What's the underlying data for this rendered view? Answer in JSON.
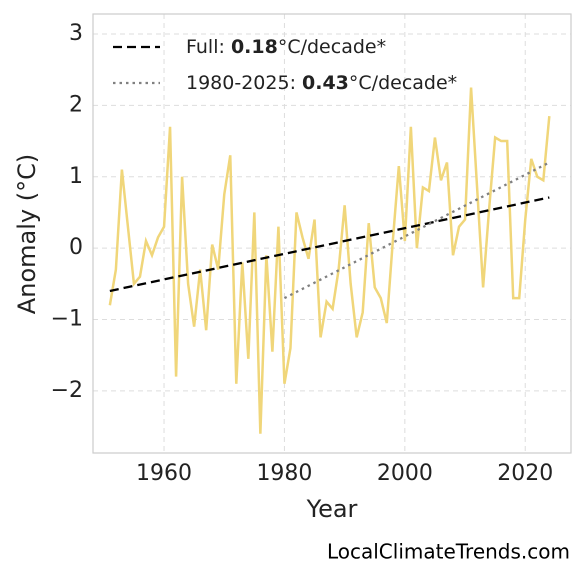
{
  "chart_data": {
    "type": "line",
    "xlabel": "Year",
    "ylabel": "Anomaly (°C)",
    "watermark": "LocalClimateTrends.com",
    "xlim": [
      1948.2,
      2027.6
    ],
    "ylim": [
      -2.87,
      3.28
    ],
    "xticks": [
      1960,
      1980,
      2000,
      2020
    ],
    "yticks": [
      {
        "value": -2,
        "label": "−2"
      },
      {
        "value": -1,
        "label": "−1"
      },
      0,
      1,
      2,
      3
    ],
    "grid": true,
    "legend": "upper left",
    "series": [
      {
        "color": "#f0d67a",
        "style": "solid",
        "x": [
          1951,
          1952,
          1953,
          1954,
          1955,
          1956,
          1957,
          1958,
          1959,
          1960,
          1961,
          1962,
          1963,
          1964,
          1965,
          1966,
          1967,
          1968,
          1969,
          1970,
          1971,
          1972,
          1973,
          1974,
          1975,
          1976,
          1977,
          1978,
          1979,
          1980,
          1981,
          1982,
          1983,
          1984,
          1985,
          1986,
          1987,
          1988,
          1989,
          1990,
          1991,
          1992,
          1993,
          1994,
          1995,
          1996,
          1997,
          1998,
          1999,
          2000,
          2001,
          2002,
          2003,
          2004,
          2005,
          2006,
          2007,
          2008,
          2009,
          2010,
          2011,
          2012,
          2013,
          2014,
          2015,
          2016,
          2017,
          2018,
          2019,
          2020,
          2021,
          2022,
          2023,
          2024
        ],
        "values": [
          -0.8,
          -0.3,
          1.1,
          0.3,
          -0.5,
          -0.4,
          0.1,
          -0.1,
          0.15,
          0.3,
          1.7,
          -1.8,
          1.0,
          -0.5,
          -1.1,
          -0.3,
          -1.15,
          0.05,
          -0.3,
          0.75,
          1.3,
          -1.9,
          -0.2,
          -1.55,
          0.5,
          -2.6,
          -0.1,
          -1.45,
          0.3,
          -1.9,
          -1.4,
          0.5,
          0.15,
          -0.15,
          0.4,
          -1.25,
          -0.75,
          -0.85,
          -0.3,
          0.6,
          -0.5,
          -1.25,
          -0.9,
          0.35,
          -0.55,
          -0.7,
          -1.05,
          0.1,
          1.15,
          0.1,
          1.7,
          0.0,
          0.85,
          0.8,
          1.55,
          0.95,
          1.2,
          -0.1,
          0.3,
          0.4,
          2.25,
          0.85,
          -0.55,
          0.55,
          1.55,
          1.5,
          1.5,
          -0.7,
          -0.7,
          0.4,
          1.25,
          1.0,
          0.95,
          1.85
        ]
      },
      {
        "color": "#000000",
        "style": "dashed",
        "label_parts": [
          "Full: ",
          "0.18",
          "°C/decade*"
        ],
        "x": [
          1951,
          2024
        ],
        "values": [
          -0.6,
          0.71
        ]
      },
      {
        "color": "#808080",
        "style": "dotted",
        "label_parts": [
          "1980-2025: ",
          "0.43",
          "°C/decade*"
        ],
        "x": [
          1980,
          2024
        ],
        "values": [
          -0.7,
          1.2
        ]
      }
    ]
  }
}
